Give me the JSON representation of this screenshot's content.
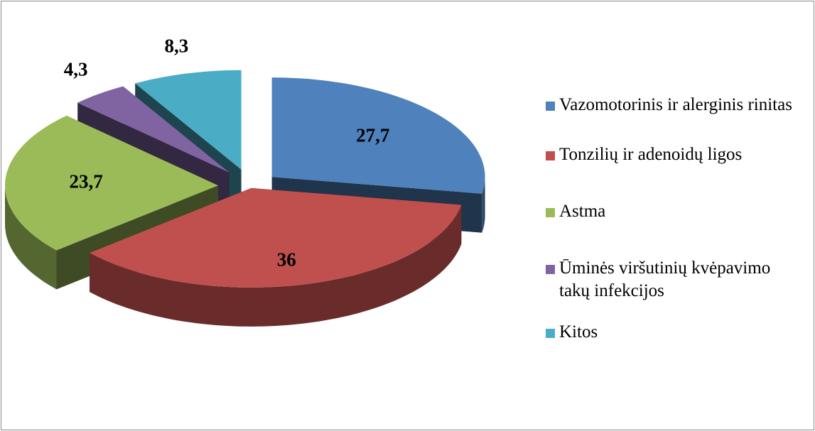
{
  "chart_data": {
    "type": "pie",
    "categories": [
      "Vazomotorinis ir alerginis rinitas",
      "Tonzilių ir adenoidų ligos",
      "Astma",
      "Ūminės viršutinių kvėpavimo takų infekcijos",
      "Kitos"
    ],
    "values": [
      27.7,
      36,
      23.7,
      4.3,
      8.3
    ],
    "value_labels": [
      "27,7",
      "36",
      "23,7",
      "4,3",
      "8,3"
    ],
    "colors": [
      "#4f81bd",
      "#c0504d",
      "#9bbb59",
      "#8064a2",
      "#4bacc6"
    ],
    "legend": "right"
  }
}
